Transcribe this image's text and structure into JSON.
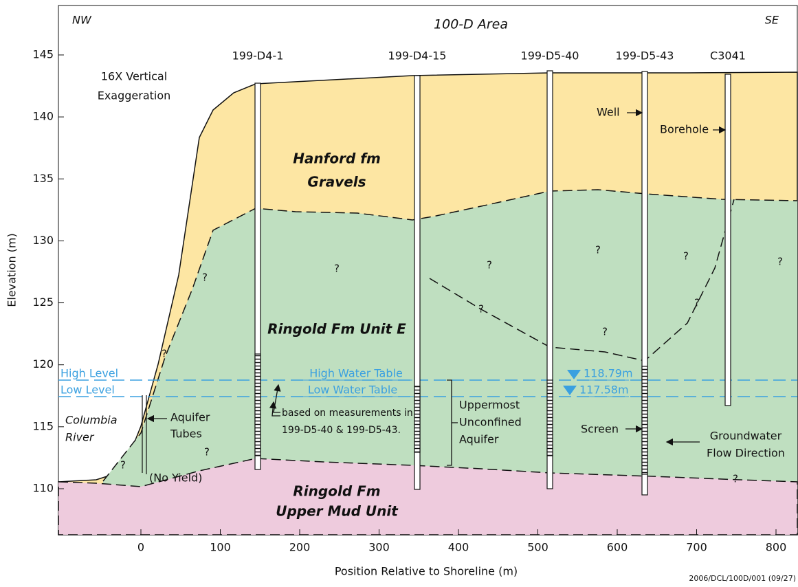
{
  "header": {
    "left": "NW",
    "title": "100-D Area",
    "right": "SE"
  },
  "axes": {
    "xlabel": "Position Relative to Shoreline (m)",
    "ylabel": "Elevation (m)",
    "xticks": [
      0,
      100,
      200,
      300,
      400,
      500,
      600,
      700,
      800
    ],
    "yticks": [
      110,
      115,
      120,
      125,
      130,
      135,
      140,
      145
    ]
  },
  "wells": [
    {
      "label": "199-D4-1"
    },
    {
      "label": "199-D4-15"
    },
    {
      "label": "199-D5-40"
    },
    {
      "label": "199-D5-43"
    },
    {
      "label": "C3041"
    }
  ],
  "units": {
    "hanford": [
      "Hanford fm",
      "Gravels"
    ],
    "ringold_e": "Ringold Fm Unit E",
    "mud": [
      "Ringold Fm",
      "Upper Mud Unit"
    ]
  },
  "water": {
    "high_level": "High Level",
    "low_level": "Low Level",
    "high_table": "High Water Table",
    "low_table": "Low Water Table",
    "high_value": "118.79m",
    "low_value": "117.58m"
  },
  "annotations": {
    "exaggeration": [
      "16X Vertical",
      "Exaggeration"
    ],
    "river": [
      "Columbia",
      "River"
    ],
    "tubes": [
      "Aquifer",
      "Tubes"
    ],
    "no_yield": "(No Yield)",
    "measurements": [
      "based on measurements in",
      "199-D5-40 & 199-D5-43."
    ],
    "aquifer": [
      "Uppermost",
      "Unconfined",
      "Aquifer"
    ],
    "well": "Well",
    "borehole": "Borehole",
    "screen": "Screen",
    "flow": [
      "Groundwater",
      "Flow Direction"
    ],
    "uncertain": "?"
  },
  "footer": "2006/DCL/100D/001 (09/27)"
}
